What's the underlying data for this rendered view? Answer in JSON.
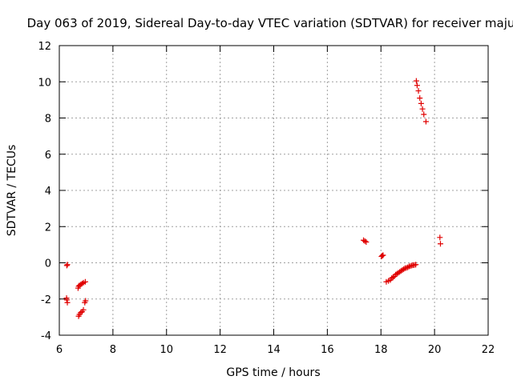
{
  "chart_data": {
    "type": "scatter",
    "title": "Day 063 of 2019, Sidereal Day-to-day VTEC variation (SDTVAR) for receiver maju",
    "xlabel": "GPS time / hours",
    "ylabel": "SDTVAR / TECUs",
    "xlim": [
      6,
      22
    ],
    "ylim": [
      -4,
      12
    ],
    "xticks": [
      6,
      8,
      10,
      12,
      14,
      16,
      18,
      20,
      22
    ],
    "yticks": [
      -4,
      -2,
      0,
      2,
      4,
      6,
      8,
      10,
      12
    ],
    "grid": true,
    "marker": "+",
    "series": [
      {
        "name": "SDTVAR",
        "color": "#e00000",
        "points": [
          [
            6.28,
            -0.15
          ],
          [
            6.3,
            -0.1
          ],
          [
            6.27,
            -1.95
          ],
          [
            6.28,
            -2.05
          ],
          [
            6.3,
            -2.2
          ],
          [
            6.7,
            -1.4
          ],
          [
            6.72,
            -1.3
          ],
          [
            6.75,
            -1.25
          ],
          [
            6.8,
            -1.2
          ],
          [
            6.85,
            -1.15
          ],
          [
            6.9,
            -1.1
          ],
          [
            6.97,
            -1.05
          ],
          [
            6.72,
            -2.95
          ],
          [
            6.75,
            -2.85
          ],
          [
            6.8,
            -2.75
          ],
          [
            6.85,
            -2.7
          ],
          [
            6.9,
            -2.6
          ],
          [
            6.95,
            -2.2
          ],
          [
            6.98,
            -2.1
          ],
          [
            17.35,
            1.25
          ],
          [
            17.4,
            1.2
          ],
          [
            17.45,
            1.15
          ],
          [
            18.02,
            0.35
          ],
          [
            18.05,
            0.4
          ],
          [
            18.08,
            0.42
          ],
          [
            18.2,
            -1.05
          ],
          [
            18.28,
            -1.0
          ],
          [
            18.35,
            -0.95
          ],
          [
            18.4,
            -0.85
          ],
          [
            18.45,
            -0.8
          ],
          [
            18.5,
            -0.75
          ],
          [
            18.55,
            -0.65
          ],
          [
            18.6,
            -0.6
          ],
          [
            18.65,
            -0.55
          ],
          [
            18.7,
            -0.5
          ],
          [
            18.75,
            -0.45
          ],
          [
            18.8,
            -0.4
          ],
          [
            18.85,
            -0.35
          ],
          [
            18.9,
            -0.3
          ],
          [
            18.95,
            -0.28
          ],
          [
            19.0,
            -0.25
          ],
          [
            19.05,
            -0.2
          ],
          [
            19.1,
            -0.18
          ],
          [
            19.15,
            -0.15
          ],
          [
            19.2,
            -0.13
          ],
          [
            19.25,
            -0.12
          ],
          [
            19.3,
            -0.1
          ],
          [
            19.32,
            10.05
          ],
          [
            19.35,
            9.8
          ],
          [
            19.4,
            9.5
          ],
          [
            19.45,
            9.1
          ],
          [
            19.5,
            8.8
          ],
          [
            19.55,
            8.5
          ],
          [
            19.6,
            8.2
          ],
          [
            19.68,
            7.8
          ],
          [
            20.2,
            1.4
          ],
          [
            20.22,
            1.05
          ]
        ]
      }
    ]
  }
}
